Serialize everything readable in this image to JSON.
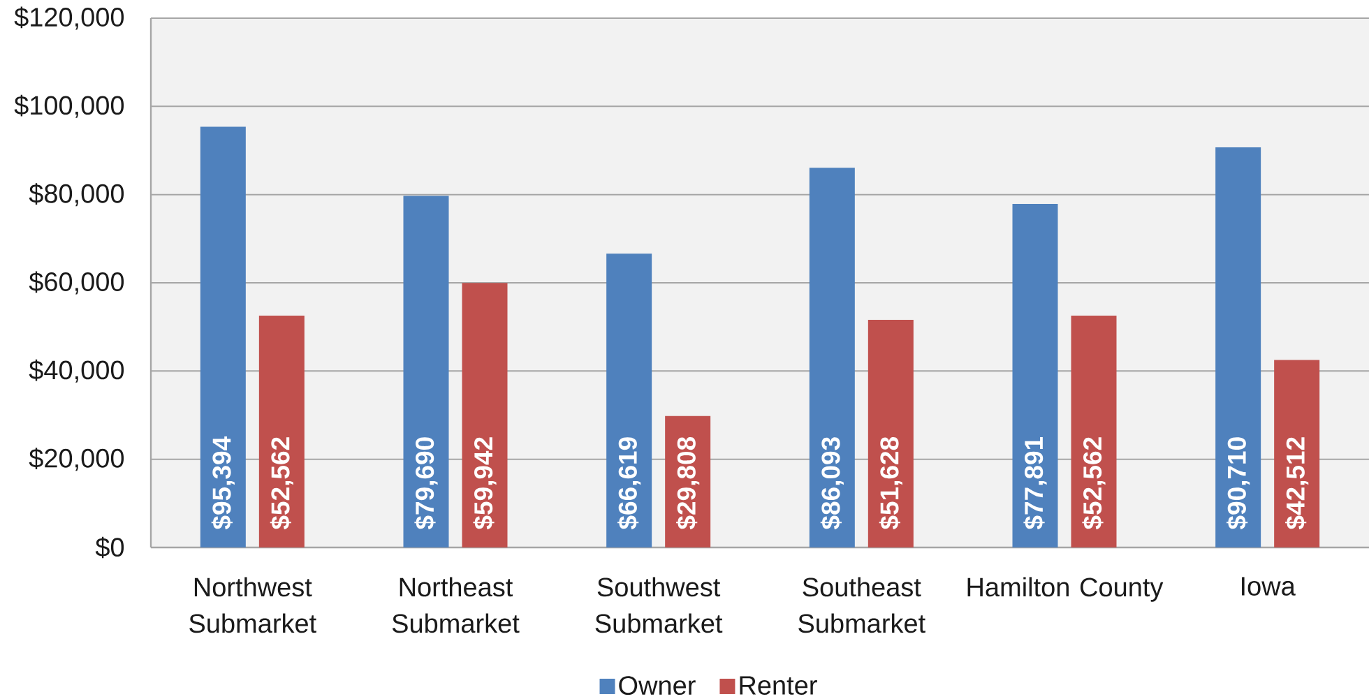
{
  "chart_data": {
    "type": "bar",
    "categories": [
      "Northwest Submarket",
      "Northeast Submarket",
      "Southwest Submarket",
      "Southeast Submarket",
      "Hamilton County",
      "Iowa"
    ],
    "series": [
      {
        "name": "Owner",
        "color": "#4f81bd",
        "values": [
          95394,
          79690,
          66619,
          86093,
          77891,
          90710
        ],
        "value_labels": [
          "$95,394",
          "$79,690",
          "$66,619",
          "$86,093",
          "$77,891",
          "$90,710"
        ]
      },
      {
        "name": "Renter",
        "color": "#c0504d",
        "values": [
          52562,
          59942,
          29808,
          51628,
          52562,
          42512
        ],
        "value_labels": [
          "$52,562",
          "$59,942",
          "$29,808",
          "$51,628",
          "$52,562",
          "$42,512"
        ]
      }
    ],
    "ylim": [
      0,
      120000
    ],
    "yticks": [
      {
        "value": 0,
        "label": "$0"
      },
      {
        "value": 20000,
        "label": "$20,000"
      },
      {
        "value": 40000,
        "label": "$40,000"
      },
      {
        "value": 60000,
        "label": "$60,000"
      },
      {
        "value": 80000,
        "label": "$80,000"
      },
      {
        "value": 100000,
        "label": "$100,000"
      },
      {
        "value": 120000,
        "label": "$120,000"
      }
    ],
    "grid": "y",
    "legend": "bottom"
  }
}
